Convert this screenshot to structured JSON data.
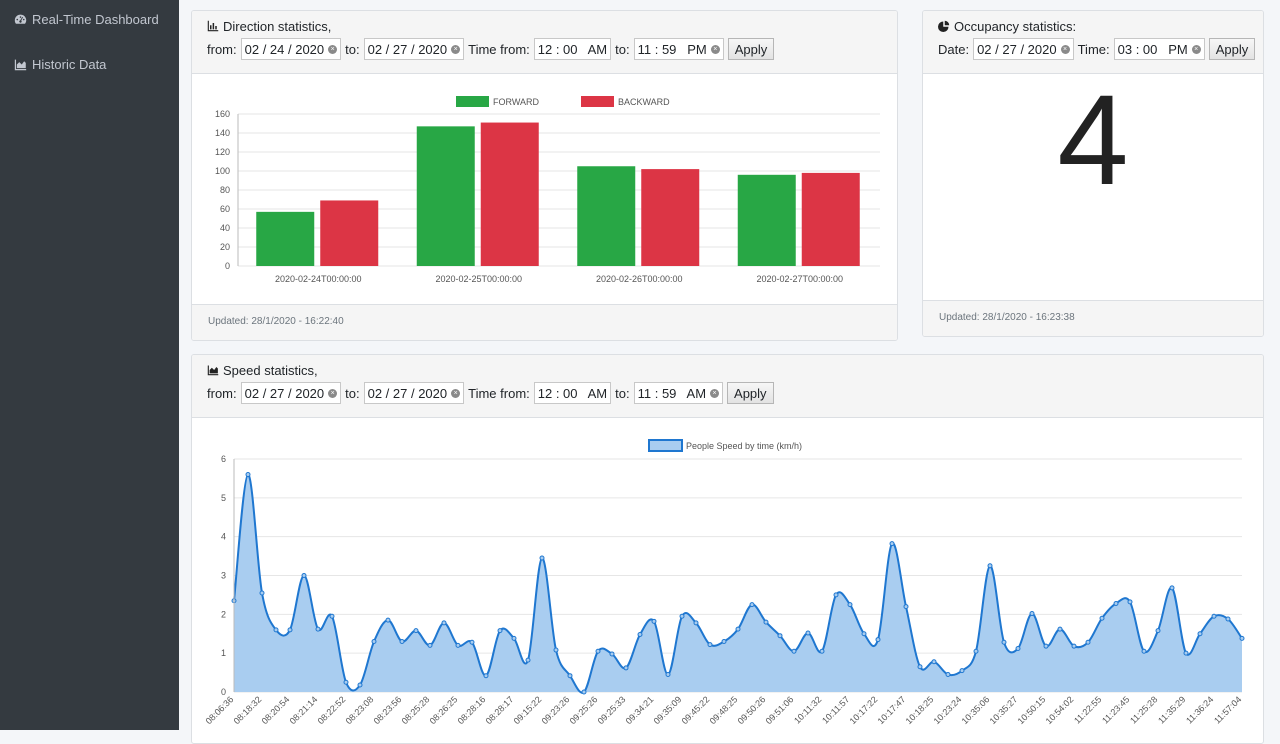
{
  "sidebar": {
    "items": [
      {
        "label": "Real-Time Dashboard",
        "icon": "gauge-icon"
      },
      {
        "label": "Historic Data",
        "icon": "area-chart-icon"
      }
    ]
  },
  "direction": {
    "title": "Direction statistics,",
    "from_label": "from:",
    "from_date": "02 / 24 / 2020",
    "to_label": "to:",
    "to_date": "02 / 27 / 2020",
    "time_from_label": "Time from:",
    "time_from": "12 : 00   AM",
    "time_to_label": "to:",
    "time_to": "11 : 59   PM",
    "apply_label": "Apply",
    "updated": "Updated: 28/1/2020 - 16:22:40"
  },
  "occupancy": {
    "title": "Occupancy statistics:",
    "date_label": "Date:",
    "date": "02 / 27 / 2020",
    "time_label": "Time:",
    "time": "03 : 00   PM",
    "apply_label": "Apply",
    "value": "4",
    "updated": "Updated: 28/1/2020 - 16:23:38"
  },
  "speed": {
    "title": "Speed statistics,",
    "from_label": "from:",
    "from_date": "02 / 27 / 2020",
    "to_label": "to:",
    "to_date": "02 / 27 / 2020",
    "time_from_label": "Time from:",
    "time_from": "12 : 00   AM",
    "time_to_label": "to:",
    "time_to": "11 : 59   AM",
    "apply_label": "Apply"
  },
  "colors": {
    "forward": "#28a745",
    "backward": "#dc3545",
    "speed_line": "#1f77d0",
    "speed_fill": "#a9cdf0"
  },
  "chart_data": [
    {
      "type": "bar",
      "categories": [
        "2020-02-24T00:00:00",
        "2020-02-25T00:00:00",
        "2020-02-26T00:00:00",
        "2020-02-27T00:00:00"
      ],
      "series": [
        {
          "name": "FORWARD",
          "values": [
            57,
            147,
            105,
            96
          ]
        },
        {
          "name": "BACKWARD",
          "values": [
            69,
            151,
            102,
            98
          ]
        }
      ],
      "yticks": [
        "0",
        "20",
        "40",
        "60",
        "80",
        "100",
        "120",
        "140",
        "160"
      ],
      "ylim": [
        0,
        160
      ],
      "legend": "top"
    },
    {
      "type": "area",
      "series": [
        {
          "name": "People Speed by time (km/h)"
        }
      ],
      "x_tick_labels": [
        "08:06:36",
        "08:18:32",
        "08:20:54",
        "08:21:14",
        "08:22:52",
        "08:23:08",
        "08:23:56",
        "08:25:28",
        "08:26:25",
        "08:28:16",
        "08:28:17",
        "09:15:22",
        "09:23:26",
        "09:25:26",
        "09:25:33",
        "09:34:21",
        "09:35:09",
        "09:45:22",
        "09:48:25",
        "09:50:26",
        "09:51:06",
        "10:11:32",
        "10:11:57",
        "10:17:22",
        "10:17:47",
        "10:18:25",
        "10:23:24",
        "10:35:06",
        "10:35:27",
        "10:50:15",
        "10:54:02",
        "11:22:55",
        "11:23:45",
        "11:25:28",
        "11:35:29",
        "11:36:24",
        "11:57:04"
      ],
      "values": [
        2.35,
        5.6,
        2.55,
        1.6,
        1.6,
        3.0,
        1.62,
        1.95,
        0.25,
        0.18,
        1.3,
        1.85,
        1.3,
        1.58,
        1.2,
        1.78,
        1.2,
        1.28,
        0.42,
        1.58,
        1.38,
        0.82,
        3.45,
        1.08,
        0.42,
        0.0,
        1.05,
        0.98,
        0.62,
        1.48,
        1.82,
        0.45,
        1.95,
        1.78,
        1.22,
        1.3,
        1.62,
        2.25,
        1.8,
        1.45,
        1.05,
        1.52,
        1.05,
        2.5,
        2.25,
        1.5,
        1.35,
        3.82,
        2.2,
        0.65,
        0.78,
        0.45,
        0.55,
        1.05,
        3.25,
        1.28,
        1.12,
        2.02,
        1.18,
        1.62,
        1.18,
        1.28,
        1.9,
        2.28,
        2.32,
        1.05,
        1.58,
        2.68,
        1.0,
        1.5,
        1.95,
        1.88,
        1.38
      ],
      "yticks": [
        "0",
        "1",
        "2",
        "3",
        "4",
        "5",
        "6"
      ],
      "ylim": [
        0,
        6
      ],
      "legend": "top"
    }
  ]
}
